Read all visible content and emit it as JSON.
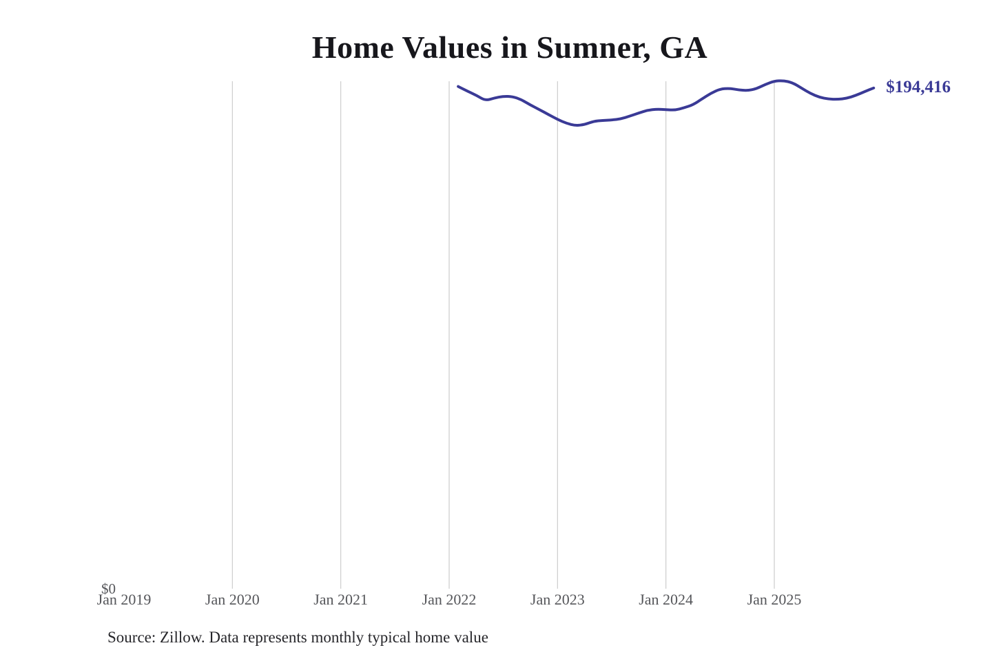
{
  "chart": {
    "title": "Home Values in Sumner, GA",
    "source_note": "Source: Zillow. Data represents monthly typical home value",
    "y_zero_label": "$0",
    "end_value_label": "$194,416"
  },
  "chart_data": {
    "type": "line",
    "title": "Home Values in Sumner, GA",
    "series_name": "Monthly typical home value",
    "latest_value": 194416,
    "end_label": "$194,416",
    "x": [
      "2022-02",
      "2022-03",
      "2022-04",
      "2022-05",
      "2022-06",
      "2022-07",
      "2022-08",
      "2022-09",
      "2022-10",
      "2022-11",
      "2022-12",
      "2023-01",
      "2023-02",
      "2023-03",
      "2023-04",
      "2023-05",
      "2023-06",
      "2023-07",
      "2023-08",
      "2023-09",
      "2023-10",
      "2023-11",
      "2023-12",
      "2024-01",
      "2024-02",
      "2024-03",
      "2024-04",
      "2024-05",
      "2024-06",
      "2024-07",
      "2024-08",
      "2024-09",
      "2024-10",
      "2024-11",
      "2024-12",
      "2025-01",
      "2025-02",
      "2025-03",
      "2025-04",
      "2025-05",
      "2025-06",
      "2025-07",
      "2025-08",
      "2025-09",
      "2025-10",
      "2025-11",
      "2025-12"
    ],
    "values": [
      195000,
      193200,
      191600,
      189500,
      190500,
      191200,
      191100,
      189900,
      187800,
      186000,
      184100,
      182200,
      180700,
      179800,
      180200,
      181500,
      181800,
      182000,
      182400,
      183500,
      184700,
      185800,
      186200,
      186000,
      185800,
      186700,
      187900,
      190200,
      192400,
      194000,
      194300,
      193700,
      193400,
      194100,
      195800,
      197100,
      197300,
      196500,
      194400,
      192300,
      190800,
      190100,
      190000,
      190400,
      191500,
      193000,
      194416
    ],
    "x_axis": {
      "ticks": [
        {
          "label": "Jan 2019",
          "year": 2019,
          "gridline": false
        },
        {
          "label": "Jan 2020",
          "year": 2020,
          "gridline": true
        },
        {
          "label": "Jan 2021",
          "year": 2021,
          "gridline": true
        },
        {
          "label": "Jan 2022",
          "year": 2022,
          "gridline": true
        },
        {
          "label": "Jan 2023",
          "year": 2023,
          "gridline": true
        },
        {
          "label": "Jan 2024",
          "year": 2024,
          "gridline": true
        },
        {
          "label": "Jan 2025",
          "year": 2025,
          "gridline": true
        }
      ]
    },
    "y_axis": {
      "min": 0,
      "zero_label": "$0"
    },
    "grid": "vertical-only",
    "legend": "none",
    "colors": {
      "line": "#3a3a96",
      "end_label": "#3a3a96",
      "gridline": "#cccccc",
      "axis_label": "#55565a",
      "title": "#17171c",
      "source": "#26262a"
    }
  }
}
